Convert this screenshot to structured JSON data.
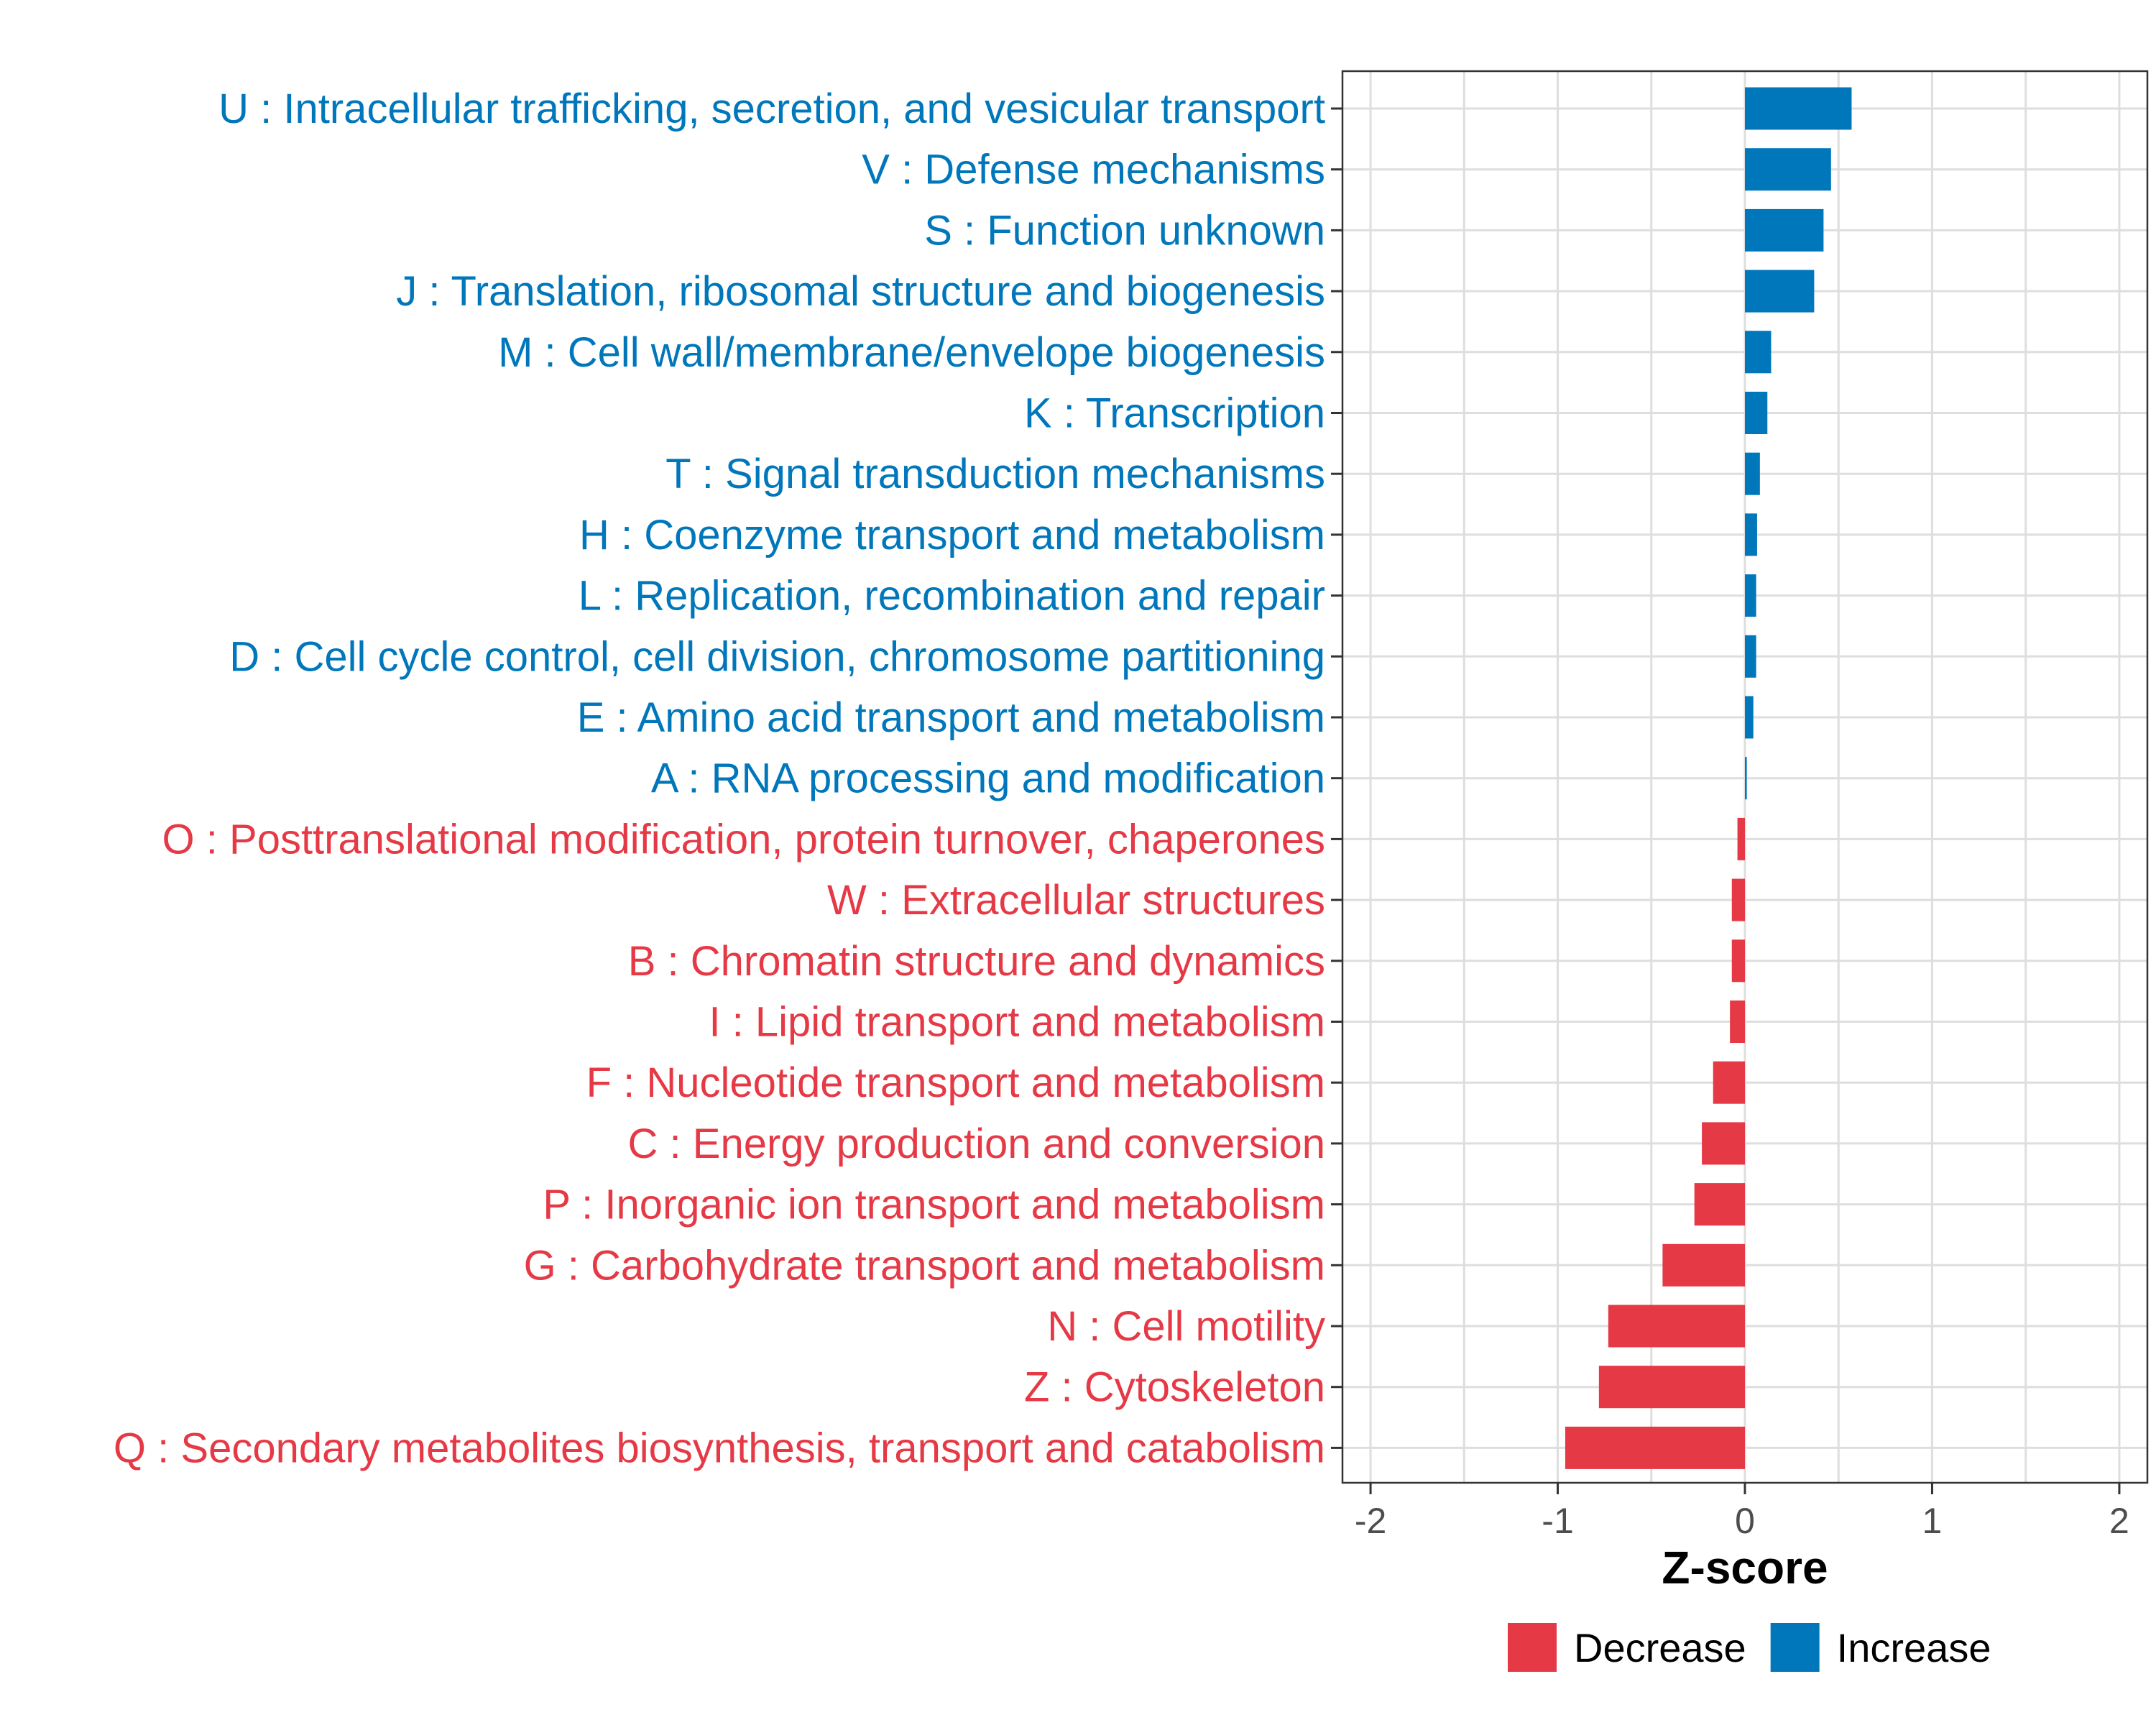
{
  "chart_data": {
    "type": "bar",
    "orientation": "horizontal",
    "xlabel": "Z-score",
    "xlim": [
      -2.15,
      2.15
    ],
    "xticks": [
      -2,
      -1,
      0,
      1,
      2
    ],
    "xtick_labels": [
      "-2",
      "-1",
      "0",
      "1",
      "2"
    ],
    "grid": true,
    "legend_position": "bottom",
    "colors": {
      "Decrease": "#e63946",
      "Increase": "#0077bb"
    },
    "legend": [
      {
        "name": "Decrease",
        "color": "#e63946"
      },
      {
        "name": "Increase",
        "color": "#0077bb"
      }
    ],
    "categories": [
      "U : Intracellular trafficking, secretion, and vesicular transport",
      "V : Defense mechanisms",
      "S : Function unknown",
      "J : Translation, ribosomal structure and biogenesis",
      "M : Cell wall/membrane/envelope biogenesis",
      "K : Transcription",
      "T : Signal transduction mechanisms",
      "H : Coenzyme transport and metabolism",
      "L : Replication, recombination and repair",
      "D : Cell cycle control, cell division, chromosome partitioning",
      "E : Amino acid transport and metabolism",
      "A : RNA processing and modification",
      "O : Posttranslational modification, protein turnover, chaperones",
      "W : Extracellular structures",
      "B : Chromatin structure and dynamics",
      "I : Lipid transport and metabolism",
      "F : Nucleotide transport and metabolism",
      "C : Energy production and conversion",
      "P : Inorganic ion transport and metabolism",
      "G : Carbohydrate transport and metabolism",
      "N : Cell motility",
      "Z : Cytoskeleton",
      "Q : Secondary metabolites biosynthesis, transport and catabolism"
    ],
    "values": [
      0.57,
      0.46,
      0.42,
      0.37,
      0.14,
      0.12,
      0.08,
      0.065,
      0.06,
      0.06,
      0.045,
      0.01,
      -0.04,
      -0.07,
      -0.07,
      -0.08,
      -0.17,
      -0.23,
      -0.27,
      -0.44,
      -0.73,
      -0.78,
      -0.96
    ],
    "groups": [
      "Increase",
      "Increase",
      "Increase",
      "Increase",
      "Increase",
      "Increase",
      "Increase",
      "Increase",
      "Increase",
      "Increase",
      "Increase",
      "Increase",
      "Decrease",
      "Decrease",
      "Decrease",
      "Decrease",
      "Decrease",
      "Decrease",
      "Decrease",
      "Decrease",
      "Decrease",
      "Decrease",
      "Decrease"
    ]
  }
}
